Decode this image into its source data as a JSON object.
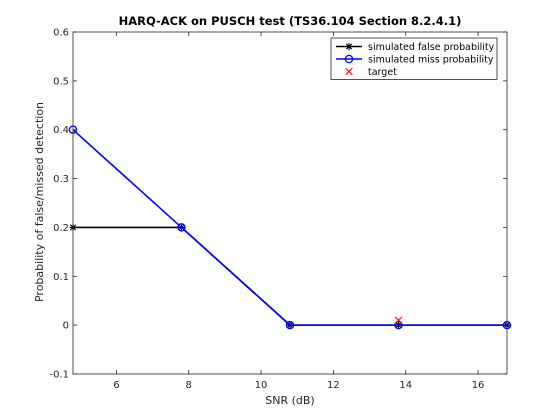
{
  "chart_data": {
    "type": "line",
    "title": "HARQ-ACK on PUSCH test (TS36.104 Section 8.2.4.1)",
    "xlabel": "SNR (dB)",
    "ylabel": "Probability of false/missed detection",
    "xlim": [
      4.8,
      16.8
    ],
    "ylim": [
      -0.1,
      0.6
    ],
    "xticks": [
      6,
      8,
      10,
      12,
      14,
      16
    ],
    "yticks": [
      -0.1,
      0,
      0.1,
      0.2,
      0.3,
      0.4,
      0.5,
      0.6
    ],
    "grid": false,
    "legend_position": "top-right",
    "series": [
      {
        "name": "simulated false probability",
        "color": "#000000",
        "marker": "asterisk",
        "x": [
          4.8,
          7.8,
          10.8,
          13.8,
          16.8
        ],
        "y": [
          0.2,
          0.2,
          0,
          0,
          0
        ]
      },
      {
        "name": "simulated miss probability",
        "color": "#0000ff",
        "marker": "circle",
        "x": [
          4.8,
          7.8,
          10.8,
          13.8,
          16.8
        ],
        "y": [
          0.4,
          0.2,
          0,
          0,
          0
        ]
      },
      {
        "name": "target",
        "color": "#ff0000",
        "marker": "x",
        "line": false,
        "x": [
          13.8
        ],
        "y": [
          0.01
        ]
      }
    ]
  }
}
